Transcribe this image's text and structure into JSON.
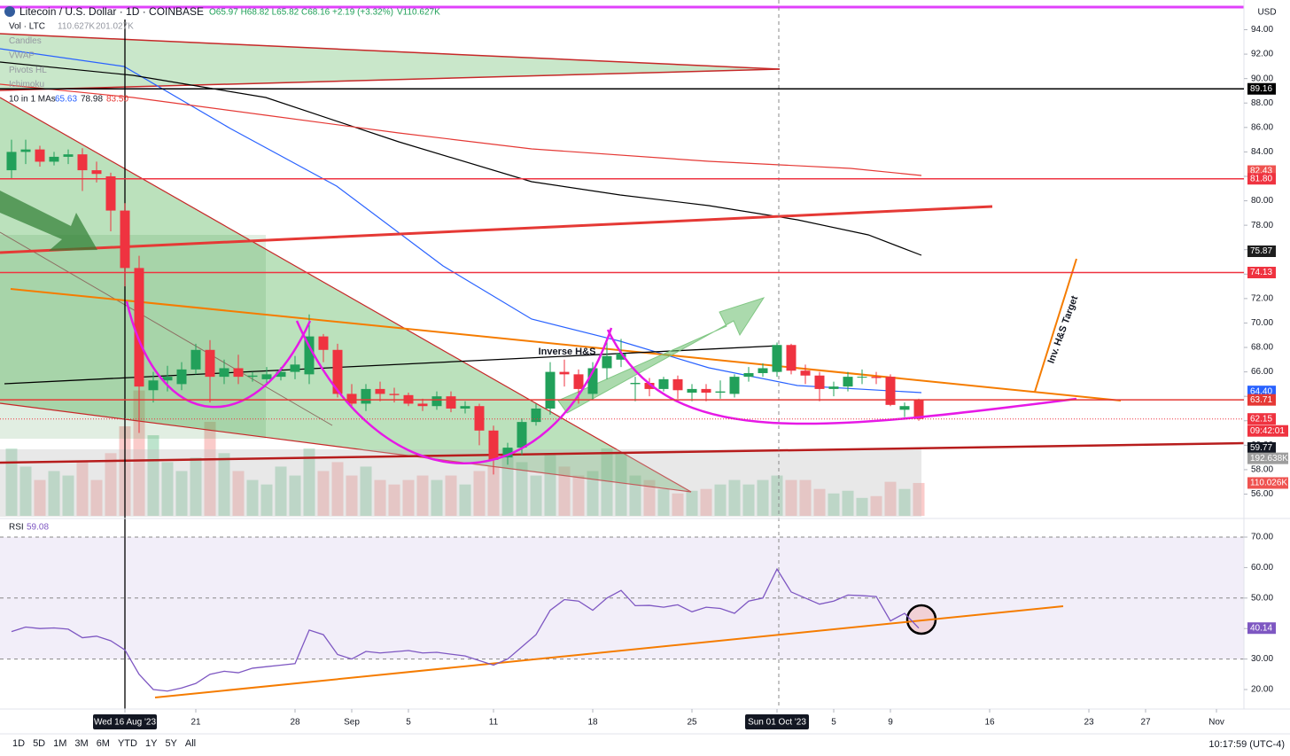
{
  "legend": {
    "ohlc": "O65.97 H68.82 L65.82 C68.16 +2.19 (+3.32%)",
    "volume": "V110.627K"
  },
  "indicators": [
    {
      "name": "Vol · LTC",
      "values": [
        "110.627K",
        "201.027K"
      ]
    },
    {
      "name": "Candles"
    },
    {
      "name": "VWAP"
    },
    {
      "name": "Pivots HL"
    },
    {
      "name": "Ichimoku"
    },
    {
      "name": "10 in 1 MAs",
      "values": [
        "65.63",
        "78.98",
        "83.50"
      ]
    }
  ],
  "currency": "USD",
  "toolbar": {
    "ranges": [
      "1D",
      "5D",
      "1M",
      "3M",
      "6M",
      "YTD",
      "1Y",
      "5Y",
      "All"
    ],
    "clock": "10:17:59 (UTC-4)"
  },
  "chart_data": [
    {
      "type": "candlestick",
      "title": "Litecoin / U.S. Dollar · 1D · COINBASE",
      "up_color": "#22a05a",
      "down_color": "#ef3340",
      "annotations": [
        "Inverse H&S",
        "Inv. H&S Target"
      ],
      "x": [
        0,
        1,
        2,
        3,
        4,
        5,
        6,
        7,
        8,
        9,
        10,
        11,
        12,
        13,
        14,
        15,
        16,
        17,
        18,
        19,
        20,
        21,
        22,
        23,
        24,
        25,
        26,
        27,
        28,
        29,
        30,
        31,
        32,
        33,
        34,
        35,
        36,
        37,
        38,
        39,
        40,
        41,
        42,
        43,
        44,
        45,
        46,
        47,
        48,
        49,
        50,
        51,
        52,
        53,
        54,
        55,
        56,
        57,
        58,
        59,
        60,
        61,
        62,
        63,
        64
      ],
      "open": [
        82.5,
        84,
        84.2,
        83.2,
        83.6,
        83.8,
        82.5,
        82,
        79.2,
        74.5,
        64.5,
        65.3,
        65,
        66.2,
        67.8,
        65.6,
        66.3,
        65.6,
        65.4,
        65.6,
        66,
        65.8,
        68.9,
        67.8,
        64.2,
        63.4,
        64.6,
        64.2,
        64.1,
        63.4,
        63.2,
        64,
        63,
        63.2,
        61.2,
        59,
        59.8,
        61.9,
        63,
        66,
        65.8,
        64.2,
        66.3,
        67,
        65,
        65.1,
        64.6,
        65.4,
        64.3,
        64.6,
        64.3,
        64.2,
        65.6,
        65.9,
        66,
        68.2,
        66.1,
        65.7,
        64.6,
        64.8,
        65.6,
        65.6,
        65.6,
        62.9,
        63.7
      ],
      "high": [
        85,
        85,
        84.5,
        84,
        84.2,
        84.3,
        83.2,
        82.3,
        79.8,
        75.5,
        66,
        66.5,
        66.8,
        68.3,
        68.6,
        67,
        67.4,
        66,
        66.4,
        66.4,
        67.3,
        70.7,
        69.1,
        68.3,
        65,
        65,
        65.2,
        64.7,
        64.3,
        63.8,
        64.4,
        64.4,
        63.6,
        63.4,
        61.6,
        60.2,
        62.2,
        63.4,
        66.8,
        67,
        66.2,
        66.8,
        68.7,
        68.7,
        65.6,
        65.5,
        65.6,
        65.7,
        65,
        65,
        65.3,
        65.8,
        66.4,
        66.7,
        68.4,
        68.3,
        66.6,
        66,
        65.2,
        66,
        66.2,
        66,
        65.8,
        63.5,
        63.8
      ],
      "low": [
        81.8,
        83,
        82.8,
        82.9,
        83,
        80.8,
        81.5,
        77.5,
        73,
        61,
        63.5,
        64.4,
        64.5,
        65.8,
        63.5,
        65,
        65,
        65.2,
        65,
        65.3,
        65.4,
        65,
        66.8,
        63.9,
        63,
        62.8,
        63.6,
        63.5,
        63.2,
        62.8,
        62.9,
        62.7,
        62.6,
        60,
        57.6,
        58.4,
        59.2,
        61.6,
        62.5,
        64.8,
        63.4,
        63.7,
        65.4,
        66.4,
        63.6,
        64,
        64.4,
        63.8,
        63.6,
        63.6,
        63.8,
        63.9,
        65.2,
        65.6,
        65.6,
        65.8,
        65,
        63.6,
        64,
        64.4,
        65,
        65,
        63.2,
        62.3,
        62
      ],
      "close": [
        84,
        84.2,
        83.2,
        83.6,
        83.8,
        82.5,
        82.2,
        79.2,
        74.5,
        64.8,
        65.3,
        65.6,
        66.2,
        67.8,
        65.6,
        66.3,
        65.6,
        65.7,
        65.8,
        66,
        66.6,
        68.9,
        67.8,
        64.2,
        63.4,
        64.6,
        64.2,
        64.1,
        63.4,
        63.2,
        64,
        63,
        63.2,
        61.2,
        58.8,
        59.8,
        61.9,
        63,
        66,
        65.8,
        64.6,
        66.3,
        67.3,
        67.5,
        65.1,
        64.6,
        65.4,
        64.5,
        64.6,
        64.3,
        64.4,
        65.6,
        65.9,
        66.3,
        68.2,
        66.1,
        65.7,
        64.6,
        64.8,
        65.6,
        65.6,
        65.5,
        63.3,
        63.2,
        62.15
      ],
      "volume": {
        "values": [
          225,
          165,
          120,
          150,
          135,
          180,
          120,
          210,
          300,
          420,
          270,
          180,
          150,
          195,
          315,
          210,
          150,
          120,
          105,
          165,
          135,
          225,
          150,
          180,
          135,
          165,
          120,
          105,
          120,
          135,
          120,
          135,
          105,
          150,
          165,
          225,
          180,
          135,
          210,
          165,
          135,
          150,
          225,
          210,
          135,
          120,
          90,
          75,
          84,
          90,
          105,
          120,
          105,
          120,
          135,
          120,
          120,
          90,
          75,
          84,
          60,
          66,
          114,
          90,
          110.026
        ],
        "axis_labels": [
          {
            "value": 192.638,
            "label": "192.638K",
            "color": "#9e9e9e"
          },
          {
            "value": 110.026,
            "label": "110.026K",
            "color": "#ef5350"
          }
        ]
      },
      "xlim": [
        -0.8125,
        86.9375
      ],
      "xticks": [
        {
          "value": 8,
          "label": "Wed 16 Aug '23"
        },
        {
          "value": 13,
          "label": "21"
        },
        {
          "value": 20,
          "label": "28"
        },
        {
          "value": 24,
          "label": "Sep"
        },
        {
          "value": 28,
          "label": "5"
        },
        {
          "value": 34,
          "label": "11"
        },
        {
          "value": 41,
          "label": "18"
        },
        {
          "value": 48,
          "label": "25"
        },
        {
          "value": 54,
          "label": "Sun 01 Oct '23"
        },
        {
          "value": 58,
          "label": "5"
        },
        {
          "value": 62,
          "label": "9"
        },
        {
          "value": 69,
          "label": "16"
        },
        {
          "value": 76,
          "label": "23"
        },
        {
          "value": 80,
          "label": "27"
        },
        {
          "value": 85,
          "label": "Nov"
        }
      ],
      "ylim": [
        54.15,
        96.43
      ],
      "yticks": [
        {
          "value": 56,
          "label": "56.00"
        },
        {
          "value": 58,
          "label": "58.00"
        },
        {
          "value": 60,
          "label": "60.00"
        },
        {
          "value": 62,
          "label": "62.00"
        },
        {
          "value": 64,
          "label": "64.00"
        },
        {
          "value": 66,
          "label": "66.00"
        },
        {
          "value": 68,
          "label": "68.00"
        },
        {
          "value": 70,
          "label": "70.00"
        },
        {
          "value": 72,
          "label": "72.00"
        },
        {
          "value": 74,
          "label": "74.00"
        },
        {
          "value": 76,
          "label": "76.00"
        },
        {
          "value": 78,
          "label": "78.00"
        },
        {
          "value": 80,
          "label": "80.00"
        },
        {
          "value": 82,
          "label": "82.00"
        },
        {
          "value": 84,
          "label": "84.00"
        },
        {
          "value": 86,
          "label": "86.00"
        },
        {
          "value": 88,
          "label": "88.00"
        },
        {
          "value": 90,
          "label": "90.00"
        },
        {
          "value": 92,
          "label": "92.00"
        },
        {
          "value": 94,
          "label": "94.00"
        }
      ],
      "price_labels": [
        {
          "value": 89.16,
          "label": "89.16",
          "color": "#000000",
          "line": true
        },
        {
          "value": 82.43,
          "label": "82.43",
          "color": "#ef5350"
        },
        {
          "value": 81.8,
          "label": "81.80",
          "color": "#ef3340",
          "line": true
        },
        {
          "value": 75.87,
          "label": "75.87",
          "color": "#1e1e1e"
        },
        {
          "value": 74.13,
          "label": "74.13",
          "color": "#ef3340",
          "line": true
        },
        {
          "value": 64.4,
          "label": "64.40",
          "color": "#2962ff"
        },
        {
          "value": 63.71,
          "label": "63.71",
          "color": "#e53935",
          "line": true
        },
        {
          "value": 62.15,
          "label": "62.15",
          "color": "#ef3340",
          "countdown": "09:42:01"
        },
        {
          "value": 59.77,
          "label": "59.77",
          "color": "#131722"
        }
      ]
    },
    {
      "type": "line",
      "title": "RSI",
      "value_text": "59.08",
      "color": "#7e57c2",
      "values": [
        39,
        40.5,
        40,
        40.2,
        39.8,
        37,
        37.5,
        36,
        33,
        25,
        20,
        19.5,
        20.5,
        22,
        25,
        26,
        25.5,
        27,
        27.5,
        28,
        28.5,
        39.5,
        38,
        31.5,
        30,
        32.5,
        32,
        32.4,
        32.8,
        32,
        32.2,
        31.6,
        31,
        29.5,
        28,
        30,
        34,
        38,
        46,
        49.5,
        49,
        46,
        50,
        52.5,
        47.5,
        47.6,
        47,
        47.8,
        45.5,
        47,
        46.6,
        45,
        49,
        50,
        59.5,
        52,
        50,
        48,
        49,
        51,
        50.8,
        50.5,
        42.5,
        45,
        40.14
      ],
      "last_label": {
        "value": 40.14,
        "label": "40.14"
      },
      "band": [
        30,
        70
      ],
      "ylim": [
        15.06,
        75.23
      ],
      "yticks": [
        {
          "value": 20,
          "label": "20.00"
        },
        {
          "value": 30,
          "label": "30.00"
        },
        {
          "value": 40,
          "label": "40.00"
        },
        {
          "value": 50,
          "label": "50.00"
        },
        {
          "value": 60,
          "label": "60.00"
        },
        {
          "value": 70,
          "label": "70.00"
        }
      ]
    }
  ]
}
